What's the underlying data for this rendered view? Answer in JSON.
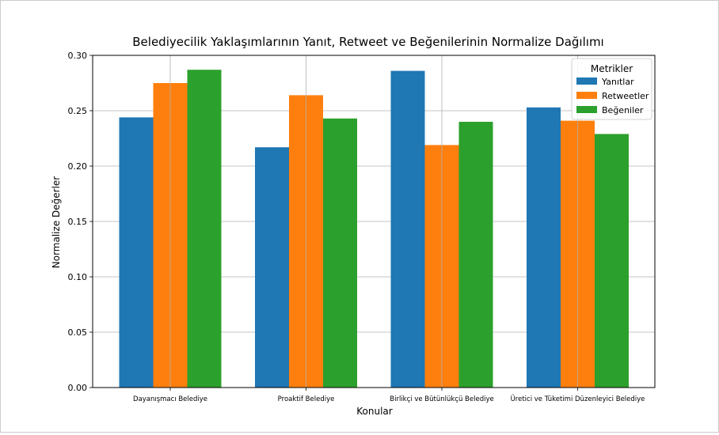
{
  "chart_data": {
    "type": "bar",
    "title": "Belediyecilik Yaklaşımlarının Yanıt, Retweet ve Beğenilerinin Normalize Dağılımı",
    "xlabel": "Konular",
    "ylabel": "Normalize Değerler",
    "categories": [
      "Dayanışmacı Belediye",
      "Proaktif Belediye",
      "Birlikçi ve Bütünlükçü Belediye",
      "Üretici ve Tüketimi Düzenleyici Belediye"
    ],
    "series": [
      {
        "name": "Yanıtlar",
        "color": "#1f77b4",
        "values": [
          0.244,
          0.217,
          0.286,
          0.253
        ]
      },
      {
        "name": "Retweetler",
        "color": "#ff7f0e",
        "values": [
          0.275,
          0.264,
          0.219,
          0.241
        ]
      },
      {
        "name": "Beğeniler",
        "color": "#2ca02c",
        "values": [
          0.287,
          0.243,
          0.24,
          0.229
        ]
      }
    ],
    "ylim": [
      0,
      0.3
    ],
    "yticks": [
      "0.00",
      "0.05",
      "0.10",
      "0.15",
      "0.20",
      "0.25",
      "0.30"
    ],
    "grid": true,
    "legend": {
      "title": "Metrikler",
      "placement": "top-right"
    }
  }
}
